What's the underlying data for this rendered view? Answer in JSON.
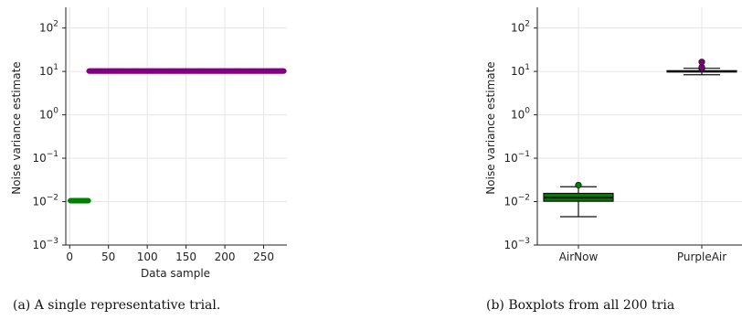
{
  "chart_data": [
    {
      "type": "scatter",
      "title": "",
      "xlabel": "Data sample",
      "ylabel": "Noise variance estimate",
      "yscale": "log",
      "xlim": [
        -5,
        280
      ],
      "ylim": [
        0.001,
        300
      ],
      "xticks": [
        0,
        50,
        100,
        150,
        200,
        250
      ],
      "xtick_labels": [
        "0",
        "50",
        "100",
        "150",
        "200",
        "250"
      ],
      "yticks": [
        0.001,
        0.01,
        0.1,
        1,
        10,
        100
      ],
      "ytick_labels": [
        {
          "base": "10",
          "exp": "−3"
        },
        {
          "base": "10",
          "exp": "−2"
        },
        {
          "base": "10",
          "exp": "−1"
        },
        {
          "base": "10",
          "exp": "0"
        },
        {
          "base": "10",
          "exp": "1"
        },
        {
          "base": "10",
          "exp": "2"
        }
      ],
      "grid": true,
      "series": [
        {
          "color": "#008000",
          "x_start": 1,
          "x_end": 24,
          "value": 0.0105
        },
        {
          "color": "#800080",
          "x_start": 25,
          "x_end": 276,
          "value": 10.2
        }
      ],
      "caption": "(a) A single representative trial."
    },
    {
      "type": "boxplot",
      "title": "",
      "xlabel": "",
      "ylabel": "Noise variance estimate",
      "yscale": "log",
      "ylim": [
        0.001,
        300
      ],
      "categories": [
        "AirNow",
        "PurpleAir"
      ],
      "yticks": [
        0.001,
        0.01,
        0.1,
        1,
        10,
        100
      ],
      "ytick_labels": [
        {
          "base": "10",
          "exp": "−3"
        },
        {
          "base": "10",
          "exp": "−2"
        },
        {
          "base": "10",
          "exp": "−1"
        },
        {
          "base": "10",
          "exp": "0"
        },
        {
          "base": "10",
          "exp": "1"
        },
        {
          "base": "10",
          "exp": "2"
        }
      ],
      "grid": true,
      "boxes": [
        {
          "category": "AirNow",
          "color": "#008000",
          "whisker_low": 0.0045,
          "q1": 0.0102,
          "median": 0.0123,
          "q3": 0.0155,
          "whisker_high": 0.022,
          "outliers": [
            0.024
          ]
        },
        {
          "category": "PurpleAir",
          "color": "#800080",
          "whisker_low": 8.4,
          "q1": 9.7,
          "median": 10.0,
          "q3": 10.4,
          "whisker_high": 11.8,
          "outliers": [
            11.5,
            12.5,
            16.5
          ]
        }
      ],
      "caption": "(b) Boxplots from all 200 tria"
    }
  ]
}
